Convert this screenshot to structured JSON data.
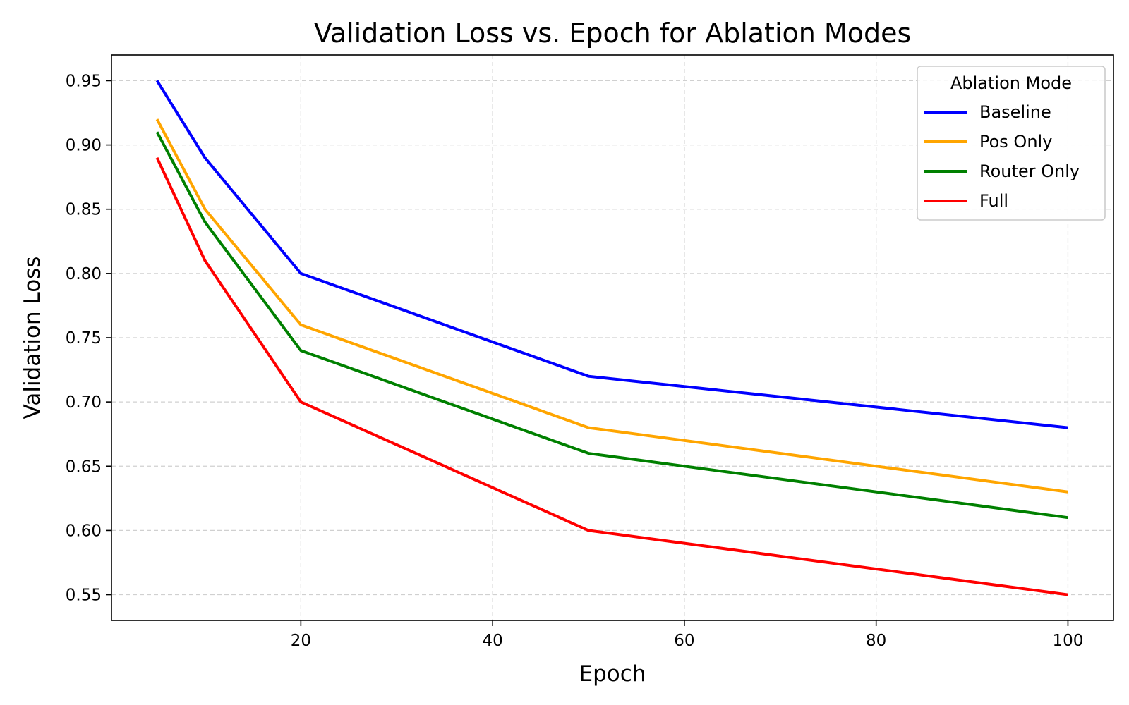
{
  "chart_data": {
    "type": "line",
    "title": "Validation Loss vs. Epoch for Ablation Modes",
    "xlabel": "Epoch",
    "ylabel": "Validation Loss",
    "x": [
      5,
      10,
      20,
      50,
      100
    ],
    "xlim": [
      0.25,
      104.75
    ],
    "ylim": [
      0.53,
      0.97
    ],
    "xticks": [
      20,
      40,
      60,
      80,
      100
    ],
    "xtick_labels": [
      "20",
      "40",
      "60",
      "80",
      "100"
    ],
    "yticks": [
      0.55,
      0.6,
      0.65,
      0.7,
      0.75,
      0.8,
      0.85,
      0.9,
      0.95
    ],
    "ytick_labels": [
      "0.55",
      "0.60",
      "0.65",
      "0.70",
      "0.75",
      "0.80",
      "0.85",
      "0.90",
      "0.95"
    ],
    "grid": true,
    "legend": {
      "title": "Ablation Mode",
      "placement": "top-right"
    },
    "series": [
      {
        "name": "Baseline",
        "color": "#0000ff",
        "values": [
          0.95,
          0.89,
          0.8,
          0.72,
          0.68
        ]
      },
      {
        "name": "Pos Only",
        "color": "#ffa500",
        "values": [
          0.92,
          0.85,
          0.76,
          0.68,
          0.63
        ]
      },
      {
        "name": "Router Only",
        "color": "#008000",
        "values": [
          0.91,
          0.84,
          0.74,
          0.66,
          0.61
        ]
      },
      {
        "name": "Full",
        "color": "#ff0000",
        "values": [
          0.89,
          0.81,
          0.7,
          0.6,
          0.55
        ]
      }
    ]
  }
}
